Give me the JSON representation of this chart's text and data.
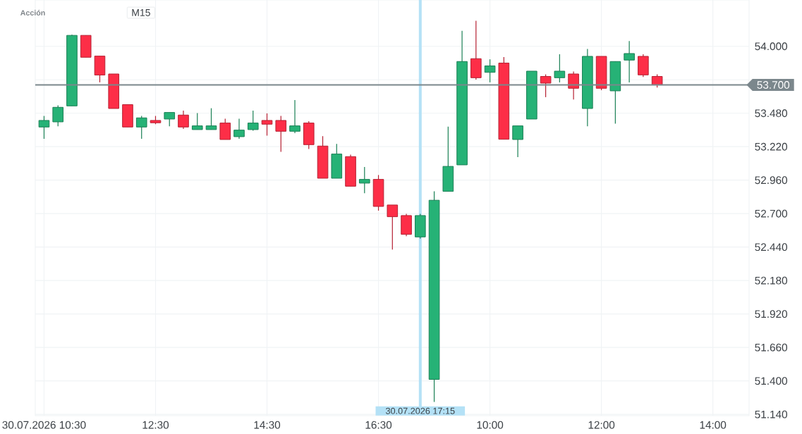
{
  "chart_data": {
    "type": "candlestick",
    "subtitle": "Acción",
    "annotations": [
      "M15"
    ],
    "categories": [
      "30.07.2026 10:30",
      null,
      null,
      null,
      null,
      null,
      null,
      null,
      "12:30",
      null,
      null,
      null,
      null,
      null,
      null,
      null,
      "14:30",
      null,
      null,
      null,
      null,
      null,
      null,
      null,
      "16:30",
      null,
      null,
      "30.07.2026 17:15",
      null,
      null,
      null,
      null,
      "10:00",
      null,
      null,
      null,
      null,
      null,
      null,
      null,
      "12:00",
      null,
      null,
      null,
      null,
      null,
      null,
      null,
      "14:00"
    ],
    "ohlc": [
      [
        53.373,
        53.459,
        53.281,
        53.424
      ],
      [
        53.413,
        53.541,
        53.378,
        53.526
      ],
      [
        53.537,
        54.09,
        53.537,
        54.085
      ],
      [
        54.085,
        54.085,
        53.915,
        53.915
      ],
      [
        53.924,
        53.924,
        53.72,
        53.777
      ],
      [
        53.785,
        53.785,
        53.517,
        53.517
      ],
      [
        53.547,
        53.547,
        53.373,
        53.373
      ],
      [
        53.373,
        53.459,
        53.281,
        53.444
      ],
      [
        53.424,
        53.459,
        53.395,
        53.406
      ],
      [
        53.435,
        53.486,
        53.378,
        53.486
      ],
      [
        53.466,
        53.5,
        53.358,
        53.373
      ],
      [
        53.353,
        53.481,
        53.353,
        53.382
      ],
      [
        53.353,
        53.519,
        53.353,
        53.382
      ],
      [
        53.404,
        53.437,
        53.276,
        53.276
      ],
      [
        53.298,
        53.437,
        53.281,
        53.349
      ],
      [
        53.353,
        53.5,
        53.344,
        53.404
      ],
      [
        53.424,
        53.479,
        53.306,
        53.395
      ],
      [
        53.424,
        53.459,
        53.18,
        53.34
      ],
      [
        53.34,
        53.583,
        53.325,
        53.382
      ],
      [
        53.404,
        53.418,
        53.202,
        53.236
      ],
      [
        53.225,
        53.302,
        52.975,
        52.975
      ],
      [
        52.975,
        53.242,
        52.975,
        53.163
      ],
      [
        53.143,
        53.158,
        52.913,
        52.913
      ],
      [
        52.937,
        53.062,
        52.858,
        52.966
      ],
      [
        52.966,
        53.0,
        52.723,
        52.756
      ],
      [
        52.767,
        52.767,
        52.42,
        52.676
      ],
      [
        52.685,
        52.698,
        52.524,
        52.539
      ],
      [
        52.519,
        52.698,
        52.506,
        52.685
      ],
      [
        51.412,
        52.873,
        51.237,
        52.804
      ],
      [
        52.873,
        53.376,
        52.873,
        53.067
      ],
      [
        53.079,
        54.121,
        53.079,
        53.882
      ],
      [
        53.904,
        54.198,
        53.741,
        53.756
      ],
      [
        53.798,
        53.899,
        53.72,
        53.848
      ],
      [
        53.87,
        53.917,
        53.278,
        53.278
      ],
      [
        53.276,
        53.382,
        53.139,
        53.382
      ],
      [
        53.435,
        53.807,
        53.435,
        53.807
      ],
      [
        53.766,
        53.782,
        53.605,
        53.714
      ],
      [
        53.756,
        53.939,
        53.72,
        53.807
      ],
      [
        53.785,
        53.804,
        53.587,
        53.674
      ],
      [
        53.517,
        53.979,
        53.378,
        53.922
      ],
      [
        53.922,
        53.922,
        53.659,
        53.674
      ],
      [
        53.654,
        53.882,
        53.399,
        53.882
      ],
      [
        53.893,
        54.041,
        53.72,
        53.944
      ],
      [
        53.922,
        53.939,
        53.762,
        53.778
      ],
      [
        53.766,
        53.782,
        53.68,
        53.7
      ],
      null,
      null,
      null,
      null
    ],
    "colors": [
      "#26b276",
      "#26b276",
      "#26b276",
      "#fd2e47",
      "#fd2e47",
      "#fd2e47",
      "#fd2e47",
      "#26b276",
      "#fd2e47",
      "#26b276",
      "#fd2e47",
      "#26b276",
      "#26b276",
      "#fd2e47",
      "#26b276",
      "#26b276",
      "#fd2e47",
      "#fd2e47",
      "#26b276",
      "#fd2e47",
      "#fd2e47",
      "#26b276",
      "#fd2e47",
      "#26b276",
      "#fd2e47",
      "#fd2e47",
      "#fd2e47",
      "#26b276",
      "#26b276",
      "#26b276",
      "#26b276",
      "#fd2e47",
      "#26b276",
      "#fd2e47",
      "#26b276",
      "#26b276",
      "#fd2e47",
      "#26b276",
      "#fd2e47",
      "#26b276",
      "#fd2e47",
      "#26b276",
      "#26b276",
      "#fd2e47",
      "#fd2e47",
      null,
      null,
      null,
      null
    ],
    "ylim": [
      51.13,
      54.36
    ],
    "yticks": [
      {
        "value": 54.0,
        "label": "54.000"
      },
      {
        "value": 53.74,
        "label": null
      },
      {
        "value": 53.48,
        "label": "53.480"
      },
      {
        "value": 53.22,
        "label": "53.220"
      },
      {
        "value": 52.96,
        "label": "52.960"
      },
      {
        "value": 52.7,
        "label": "52.700"
      },
      {
        "value": 52.44,
        "label": "52.440"
      },
      {
        "value": 52.18,
        "label": "52.180"
      },
      {
        "value": 51.92,
        "label": "51.920"
      },
      {
        "value": 51.66,
        "label": "51.660"
      },
      {
        "value": 51.4,
        "label": "51.400"
      },
      {
        "value": 51.14,
        "label": "51.140"
      }
    ],
    "grid": true,
    "ref_lines": [
      {
        "axis": "x",
        "value": "30.07.2026 17:15",
        "color": "#b4e1f6"
      },
      {
        "axis": "y",
        "value": 53.7,
        "label": "53.700",
        "color": "#7b878c"
      }
    ]
  }
}
